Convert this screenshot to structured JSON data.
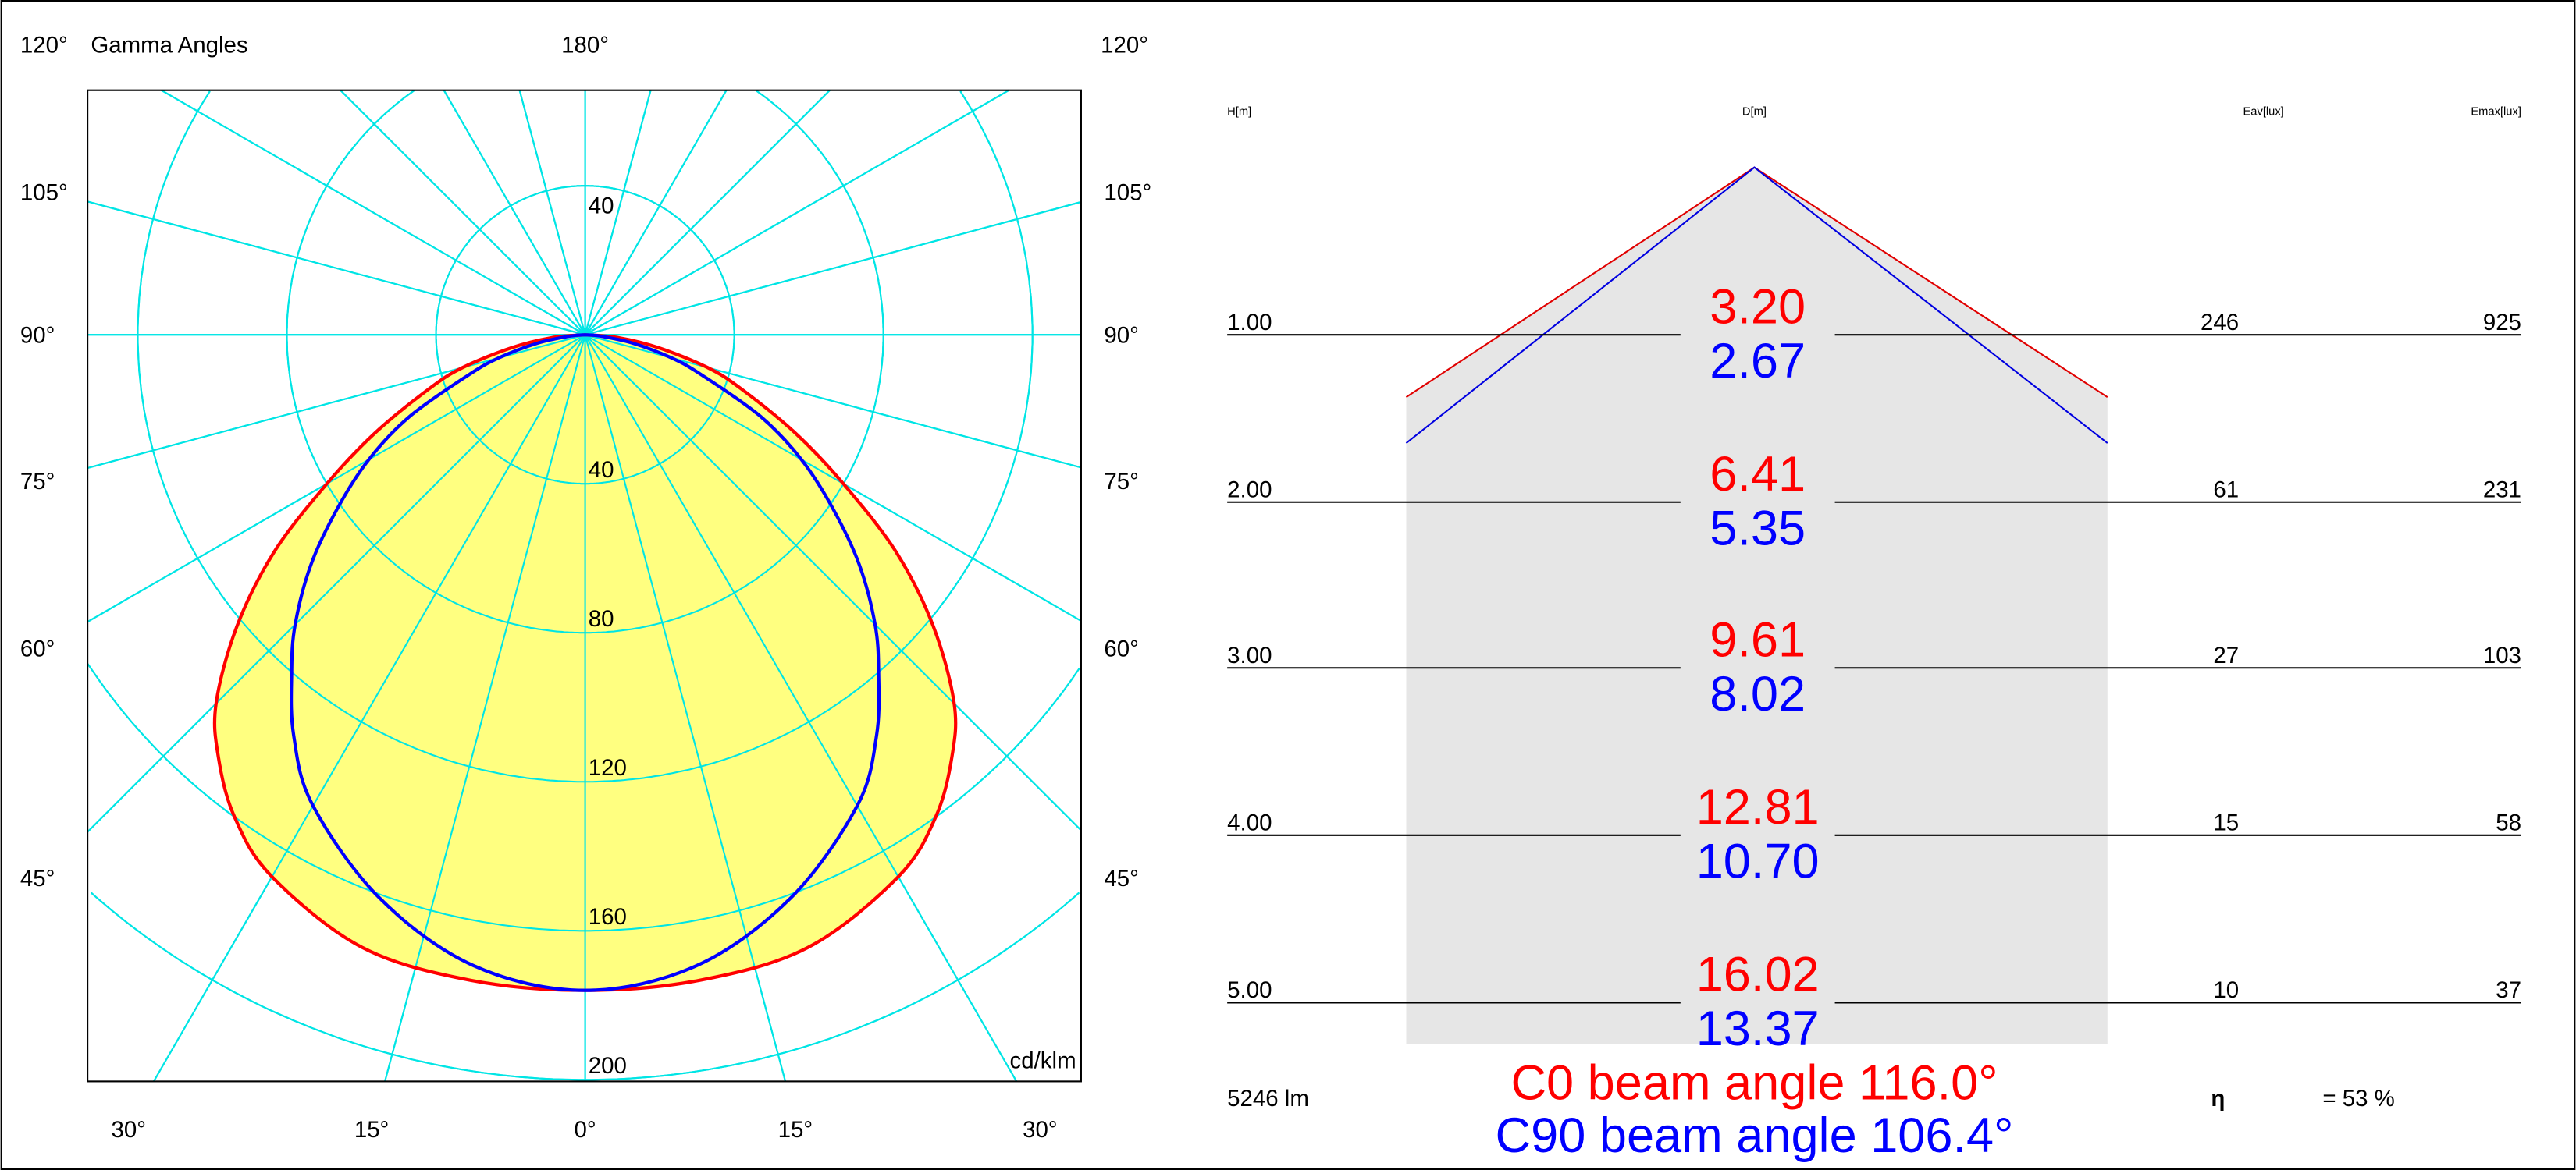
{
  "chart_data": [
    {
      "type": "polar",
      "title": "Gamma Angles",
      "unit_label": "cd/klm",
      "radial_ticks": [
        40,
        80,
        120,
        160,
        200
      ],
      "angle_labels": {
        "top": "180°",
        "top_corners": "120°",
        "sides": [
          "105°",
          "90°",
          "75°",
          "60°",
          "45°"
        ],
        "bottom": [
          "30°",
          "15°",
          "0°",
          "15°",
          "30°"
        ]
      },
      "gamma": [
        0,
        10,
        20,
        30,
        36,
        41,
        45,
        50,
        55,
        60,
        65,
        71,
        75,
        80,
        85,
        90
      ],
      "series": [
        {
          "name": "C0",
          "color": "#ff0000",
          "values": [
            176,
            176,
            175,
            168,
            160,
            150,
            140,
            122,
            102,
            80,
            62,
            44,
            34,
            20,
            9,
            0
          ]
        },
        {
          "name": "C90",
          "color": "#0000ff",
          "values": [
            176,
            172,
            161,
            146,
            133,
            120,
            110,
            96,
            81,
            67,
            52,
            33,
            24,
            13,
            4,
            0
          ]
        }
      ],
      "fill_color": "#ffff80",
      "grid_color": "#00e5e5"
    },
    {
      "type": "table",
      "headers": {
        "h": "H[m]",
        "d": "D[m]",
        "eav": "Eav[lux]",
        "emax": "Emax[lux]"
      },
      "rows": [
        {
          "h": "1.00",
          "d_c0": "3.20",
          "d_c90": "2.67",
          "eav": "246",
          "emax": "925"
        },
        {
          "h": "2.00",
          "d_c0": "6.41",
          "d_c90": "5.35",
          "eav": "61",
          "emax": "231"
        },
        {
          "h": "3.00",
          "d_c0": "9.61",
          "d_c90": "8.02",
          "eav": "27",
          "emax": "103"
        },
        {
          "h": "4.00",
          "d_c0": "12.81",
          "d_c90": "10.70",
          "eav": "15",
          "emax": "58"
        },
        {
          "h": "5.00",
          "d_c0": "16.02",
          "d_c90": "13.37",
          "eav": "10",
          "emax": "37"
        }
      ],
      "beam_angles": {
        "c0": "C0  beam angle 116.0°",
        "c90": "C90 beam angle 106.4°"
      },
      "flux": "5246 lm",
      "eta_symbol": "η",
      "eta_value": "= 53 %"
    }
  ]
}
